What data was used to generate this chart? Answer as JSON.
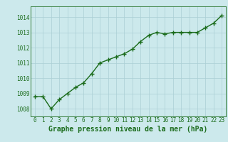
{
  "x": [
    0,
    1,
    2,
    3,
    4,
    5,
    6,
    7,
    8,
    9,
    10,
    11,
    12,
    13,
    14,
    15,
    16,
    17,
    18,
    19,
    20,
    21,
    22,
    23
  ],
  "y": [
    1008.8,
    1008.8,
    1008.0,
    1008.6,
    1009.0,
    1009.4,
    1009.7,
    1010.3,
    1011.0,
    1011.2,
    1011.4,
    1011.6,
    1011.9,
    1012.4,
    1012.8,
    1013.0,
    1012.9,
    1013.0,
    1013.0,
    1013.0,
    1013.0,
    1013.3,
    1013.6,
    1014.1
  ],
  "line_color": "#1a6b1a",
  "marker_color": "#1a6b1a",
  "bg_color": "#cce9ec",
  "grid_color": "#aacfd4",
  "xlabel": "Graphe pression niveau de la mer (hPa)",
  "xlabel_color": "#1a6b1a",
  "tick_color": "#1a6b1a",
  "ylim": [
    1007.5,
    1014.7
  ],
  "yticks": [
    1008,
    1009,
    1010,
    1011,
    1012,
    1013,
    1014
  ],
  "marker_size": 4.0,
  "line_width": 1.0,
  "font_size_ticks": 5.5,
  "font_size_xlabel": 7.0
}
